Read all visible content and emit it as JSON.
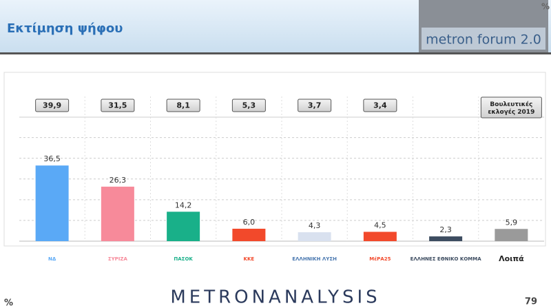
{
  "header": {
    "title": "Εκτίμηση ψήφου",
    "unit": "%",
    "brand": "metron forum 2.0"
  },
  "chart_data": {
    "type": "bar",
    "categories": [
      "ΝΔ",
      "ΣΥΡΙΖΑ",
      "ΠΑΣΟΚ",
      "ΚΚΕ",
      "ΕΛΛΗΝΙΚΗ ΛΥΣΗ",
      "ΜέΡΑ25",
      "ΕΛΛΗΝΕΣ ΕΘΝΙΚΟ ΚΟΜΜΑ",
      "Λοιπά"
    ],
    "values": [
      36.5,
      26.3,
      14.2,
      6.0,
      4.3,
      4.5,
      2.3,
      5.9
    ],
    "value_labels": [
      "36,5",
      "26,3",
      "14,2",
      "6,0",
      "4,3",
      "4,5",
      "2,3",
      "5,9"
    ],
    "colors": [
      "#5aa9f6",
      "#f78a9a",
      "#19b089",
      "#f2492b",
      "#d9e1ef",
      "#f2492b",
      "#3d4c60",
      "#9a9a9a"
    ],
    "reference": {
      "name": "Βουλευτικές εκλογές 2019",
      "values": [
        39.9,
        31.5,
        8.1,
        5.3,
        3.7,
        3.4,
        null,
        null
      ],
      "value_labels": [
        "39,9",
        "31,5",
        "8,1",
        "5,3",
        "3,7",
        "3,4",
        null,
        null
      ]
    },
    "ylim": [
      0,
      60
    ],
    "yticks": [
      10,
      20,
      30,
      40,
      50
    ],
    "grid": true
  },
  "footer": {
    "unit": "%",
    "logo": "METRONANALYSIS",
    "page": "79"
  }
}
